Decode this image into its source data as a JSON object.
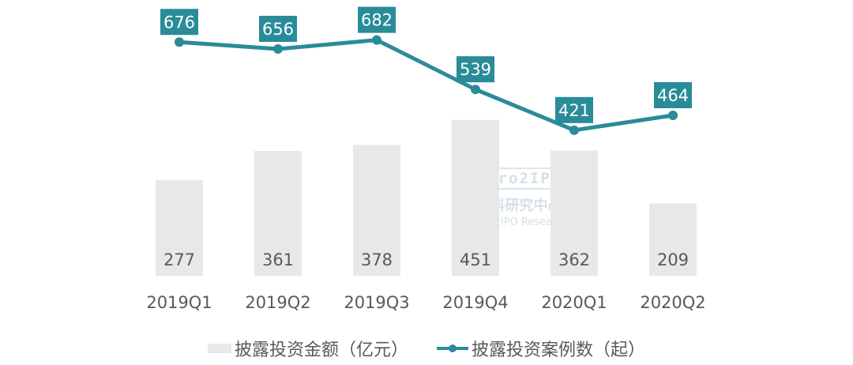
{
  "chart_data": {
    "type": "bar+line",
    "categories": [
      "2019Q1",
      "2019Q2",
      "2019Q3",
      "2019Q4",
      "2020Q1",
      "2020Q2"
    ],
    "series": [
      {
        "name": "披露投资金额（亿元）",
        "type": "bar",
        "values": [
          277,
          361,
          378,
          451,
          362,
          209
        ],
        "color": "#e7e8ea"
      },
      {
        "name": "披露投资案例数（起）",
        "type": "line",
        "values": [
          676,
          656,
          682,
          539,
          421,
          464
        ],
        "color": "#2a8b99"
      }
    ],
    "grid": false,
    "legend": "bottom",
    "data_labels": true
  },
  "watermark": {
    "logo": "Zero2IPO",
    "cn": "清科研究中心",
    "en": "Zero2IPO Research"
  }
}
